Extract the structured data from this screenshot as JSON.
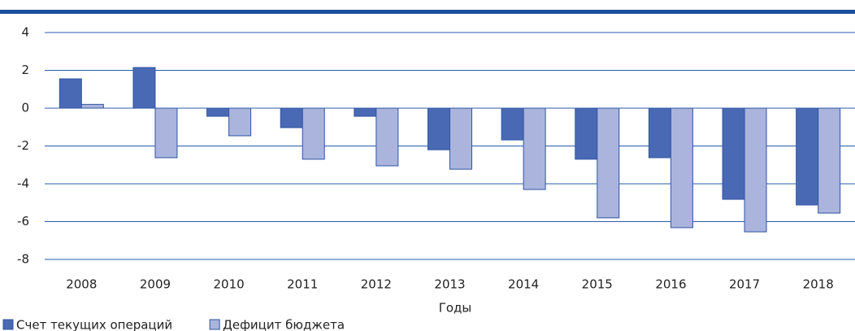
{
  "chart_data": {
    "type": "bar",
    "x_label": "Годы",
    "categories": [
      "2008",
      "2009",
      "2010",
      "2011",
      "2012",
      "2013",
      "2014",
      "2015",
      "2016",
      "2017",
      "2018"
    ],
    "series": [
      {
        "name": "Счет текущих операций",
        "color": "#4a69b5",
        "values": [
          1.55,
          2.15,
          -0.43,
          -1.03,
          -0.43,
          -2.2,
          -1.68,
          -2.7,
          -2.62,
          -4.82,
          -5.12
        ]
      },
      {
        "name": "Дефицит бюджета",
        "color": "#aab4dc",
        "values": [
          0.2,
          -2.62,
          -1.46,
          -2.7,
          -3.05,
          -3.23,
          -4.3,
          -5.8,
          -6.32,
          -6.54,
          -5.55
        ]
      }
    ],
    "ylim": [
      -8,
      4
    ],
    "yticks": [
      -8,
      -6,
      -4,
      -2,
      0,
      2,
      4
    ],
    "grid": true,
    "legend": "bottom-left"
  }
}
